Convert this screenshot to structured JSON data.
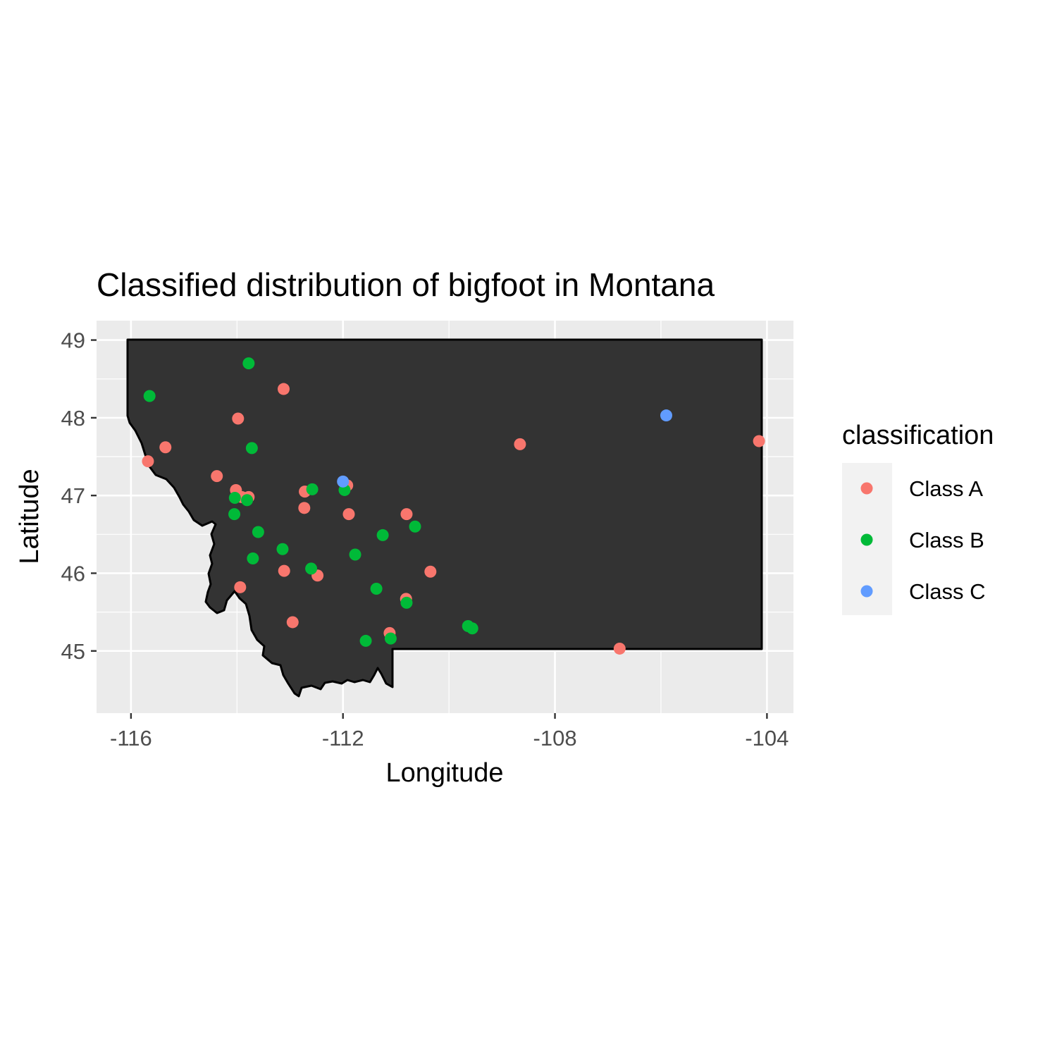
{
  "chart_data": {
    "type": "scatter",
    "title": "Classified distribution of bigfoot in Montana",
    "xlabel": "Longitude",
    "ylabel": "Latitude",
    "xlim": [
      -116.65,
      -103.5
    ],
    "ylim": [
      44.2,
      49.25
    ],
    "xticks": [
      -116,
      -112,
      -108,
      -104
    ],
    "yticks": [
      45,
      46,
      47,
      48,
      49
    ],
    "grid": true,
    "legend": {
      "title": "classification",
      "position": "right",
      "entries": [
        "Class A",
        "Class B",
        "Class C"
      ]
    },
    "colors": {
      "Class A": "#F8766D",
      "Class B": "#00BA38",
      "Class C": "#619CFF",
      "panel": "#EBEBEB",
      "gridline": "#FFFFFF",
      "state_fill": "#333333",
      "state_border": "#000000"
    },
    "series": [
      {
        "name": "Class A",
        "x": [
          -115.35,
          -114.38,
          -114.02,
          -113.98,
          -113.12,
          -113.91,
          -113.78,
          -112.72,
          -112.73,
          -111.92,
          -111.89,
          -110.8,
          -110.81,
          -110.35,
          -113.11,
          -112.48,
          -113.94,
          -112.95,
          -111.12,
          -108.66,
          -104.15,
          -106.78,
          -115.68
        ],
        "y": [
          47.62,
          47.25,
          47.07,
          47.99,
          48.37,
          46.98,
          46.98,
          47.05,
          46.84,
          47.13,
          46.76,
          46.76,
          45.67,
          46.02,
          46.03,
          45.97,
          45.82,
          45.37,
          45.23,
          47.66,
          47.7,
          45.03,
          47.44
        ]
      },
      {
        "name": "Class B",
        "x": [
          -115.65,
          -113.78,
          -113.72,
          -114.04,
          -113.81,
          -114.05,
          -113.6,
          -113.14,
          -113.7,
          -112.58,
          -111.97,
          -111.77,
          -112.6,
          -111.25,
          -110.64,
          -111.37,
          -110.8,
          -111.57,
          -111.1,
          -109.64,
          -109.56
        ],
        "y": [
          48.28,
          48.7,
          47.61,
          46.97,
          46.94,
          46.76,
          46.53,
          46.31,
          46.19,
          47.08,
          47.07,
          46.24,
          46.06,
          46.49,
          46.6,
          45.8,
          45.62,
          45.13,
          45.16,
          45.32,
          45.29
        ]
      },
      {
        "name": "Class C",
        "x": [
          -112.0,
          -105.9
        ],
        "y": [
          47.18,
          48.03
        ]
      }
    ]
  }
}
